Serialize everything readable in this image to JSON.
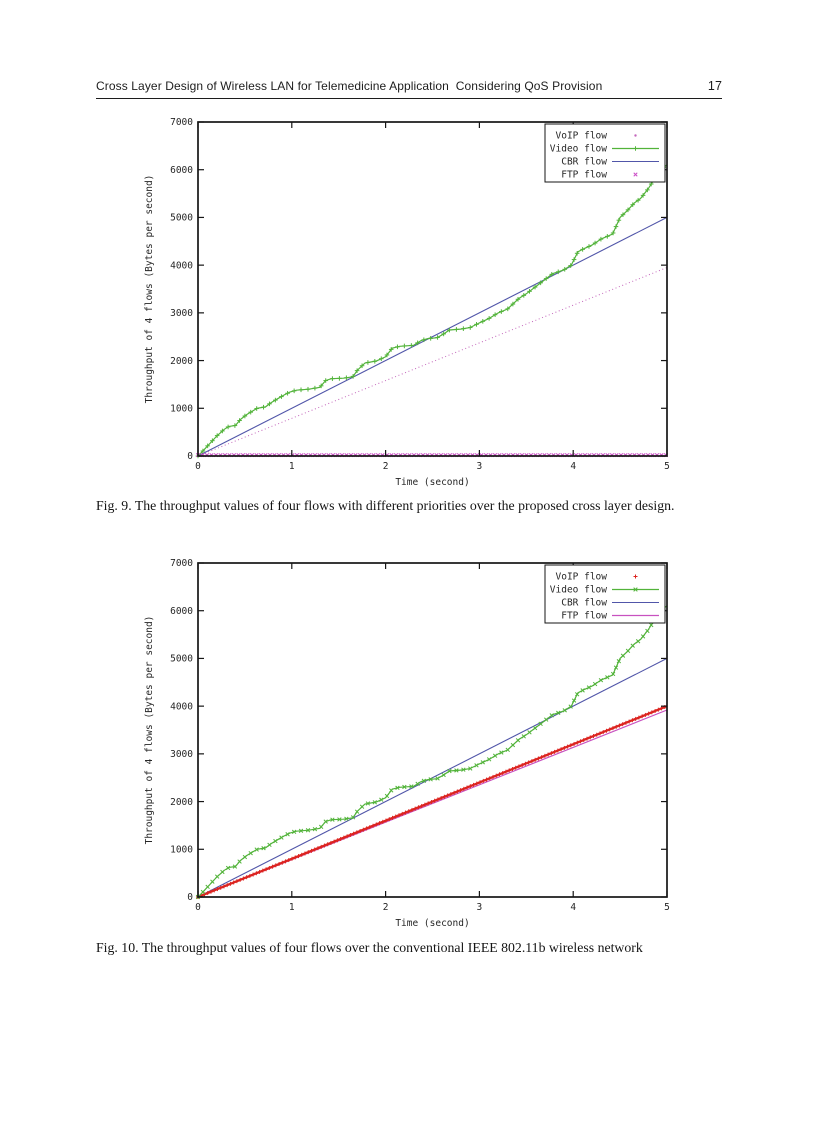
{
  "header": {
    "title": "Cross Layer Design of Wireless LAN for Telemedicine Application  Considering QoS Provision",
    "page_number": "17"
  },
  "figures": [
    {
      "caption": "Fig. 9. The throughput values of four flows with different priorities over the proposed cross layer design."
    },
    {
      "caption": "Fig. 10. The throughput values of four flows over the conventional IEEE 802.11b wireless network"
    }
  ],
  "chart_data": [
    {
      "name": "fig9-throughput-chart",
      "type": "line",
      "title": "",
      "xlabel": "Time (second)",
      "ylabel": "Throughput of 4 flows (Bytes per second)",
      "xlim": [
        0,
        5
      ],
      "ylim": [
        0,
        7000
      ],
      "xticks": [
        0,
        1,
        2,
        3,
        4,
        5
      ],
      "yticks": [
        0,
        1000,
        2000,
        3000,
        4000,
        5000,
        6000,
        7000
      ],
      "grid": false,
      "legend_position": "top-right",
      "series": [
        {
          "name": "VoIP flow",
          "color": "#c468bc",
          "style": "dotted",
          "width": 1,
          "marker": "none",
          "legend_sample": "dot",
          "z": 1,
          "x": [
            0,
            5
          ],
          "y": [
            0,
            3950
          ]
        },
        {
          "name": "Video flow",
          "color": "#52b33a",
          "style": "solid",
          "width": 1.2,
          "marker": "plus",
          "marker_size": 4.6,
          "marker_spacing": 7,
          "legend_sample": "line+marker",
          "z": 3,
          "x": [
            0,
            0.05,
            0.12,
            0.2,
            0.28,
            0.33,
            0.4,
            0.45,
            0.52,
            0.58,
            0.63,
            0.72,
            0.78,
            0.85,
            0.92,
            0.98,
            1.05,
            1.18,
            1.3,
            1.36,
            1.42,
            1.55,
            1.65,
            1.7,
            1.78,
            1.9,
            2.0,
            2.07,
            2.15,
            2.3,
            2.38,
            2.45,
            2.55,
            2.62,
            2.68,
            2.8,
            2.9,
            3.0,
            3.1,
            3.2,
            3.3,
            3.42,
            3.5,
            3.6,
            3.7,
            3.78,
            3.9,
            3.98,
            4.05,
            4.12,
            4.2,
            4.3,
            4.42,
            4.5,
            4.58,
            4.65,
            4.72,
            4.8,
            4.88,
            4.93,
            5.0
          ],
          "y": [
            0,
            100,
            250,
            420,
            560,
            620,
            640,
            760,
            870,
            940,
            1000,
            1030,
            1120,
            1200,
            1280,
            1340,
            1380,
            1400,
            1440,
            1580,
            1620,
            1630,
            1660,
            1800,
            1950,
            1990,
            2080,
            2260,
            2300,
            2320,
            2420,
            2460,
            2480,
            2560,
            2640,
            2660,
            2690,
            2790,
            2880,
            3000,
            3080,
            3300,
            3400,
            3550,
            3700,
            3820,
            3900,
            4000,
            4280,
            4350,
            4420,
            4550,
            4650,
            5000,
            5150,
            5300,
            5400,
            5600,
            5850,
            6000,
            6100
          ]
        },
        {
          "name": "CBR flow",
          "color": "#5156a9",
          "style": "solid",
          "width": 1.1,
          "marker": "none",
          "legend_sample": "line",
          "z": 2,
          "x": [
            0,
            5
          ],
          "y": [
            0,
            5000
          ]
        },
        {
          "name": "FTP flow",
          "color": "#cb4ec6",
          "style": "none",
          "width": 1,
          "marker": "x",
          "marker_size": 4.4,
          "marker_spacing": 4.5,
          "legend_sample": "marker",
          "z": 4,
          "x": [
            0,
            5
          ],
          "y": [
            18,
            18
          ]
        }
      ]
    },
    {
      "name": "fig10-throughput-chart",
      "type": "line",
      "title": "",
      "xlabel": "Time (second)",
      "ylabel": "Throughput of 4 flows (Bytes per second)",
      "xlim": [
        0,
        5
      ],
      "ylim": [
        0,
        7000
      ],
      "xticks": [
        0,
        1,
        2,
        3,
        4,
        5
      ],
      "yticks": [
        0,
        1000,
        2000,
        3000,
        4000,
        5000,
        6000,
        7000
      ],
      "grid": false,
      "legend_position": "top-right",
      "series": [
        {
          "name": "VoIP flow",
          "color": "#dc2420",
          "style": "solid",
          "width": 2.2,
          "marker": "plus",
          "marker_size": 4,
          "marker_spacing": 3.5,
          "legend_sample": "marker",
          "z": 3,
          "x": [
            0,
            5
          ],
          "y": [
            0,
            4000
          ]
        },
        {
          "name": "Video flow",
          "color": "#52b33a",
          "style": "solid",
          "width": 1.2,
          "marker": "x",
          "marker_size": 4.6,
          "marker_spacing": 7,
          "legend_sample": "line+marker",
          "z": 4,
          "x": [
            0,
            0.05,
            0.12,
            0.2,
            0.28,
            0.33,
            0.4,
            0.45,
            0.52,
            0.58,
            0.63,
            0.72,
            0.78,
            0.85,
            0.92,
            0.98,
            1.05,
            1.18,
            1.3,
            1.36,
            1.42,
            1.55,
            1.65,
            1.7,
            1.78,
            1.9,
            2.0,
            2.07,
            2.15,
            2.3,
            2.38,
            2.45,
            2.55,
            2.62,
            2.68,
            2.8,
            2.9,
            3.0,
            3.1,
            3.2,
            3.3,
            3.42,
            3.5,
            3.6,
            3.7,
            3.78,
            3.9,
            3.98,
            4.05,
            4.12,
            4.2,
            4.3,
            4.42,
            4.5,
            4.58,
            4.65,
            4.72,
            4.8,
            4.88,
            4.93,
            5.0
          ],
          "y": [
            0,
            100,
            250,
            420,
            560,
            620,
            640,
            760,
            870,
            940,
            1000,
            1030,
            1120,
            1200,
            1280,
            1340,
            1380,
            1400,
            1440,
            1580,
            1620,
            1630,
            1660,
            1800,
            1950,
            1990,
            2080,
            2260,
            2300,
            2320,
            2420,
            2460,
            2480,
            2560,
            2640,
            2660,
            2690,
            2790,
            2880,
            3000,
            3080,
            3300,
            3400,
            3550,
            3700,
            3820,
            3900,
            4000,
            4280,
            4350,
            4420,
            4550,
            4650,
            5000,
            5150,
            5300,
            5400,
            5600,
            5850,
            6000,
            6100
          ]
        },
        {
          "name": "CBR flow",
          "color": "#5156a9",
          "style": "solid",
          "width": 1.1,
          "marker": "none",
          "legend_sample": "line",
          "z": 2,
          "x": [
            0,
            5
          ],
          "y": [
            0,
            5000
          ]
        },
        {
          "name": "FTP flow",
          "color": "#c851c0",
          "style": "solid",
          "width": 1.2,
          "marker": "none",
          "legend_sample": "line",
          "z": 1,
          "x": [
            0,
            5
          ],
          "y": [
            0,
            3920
          ]
        }
      ]
    }
  ]
}
